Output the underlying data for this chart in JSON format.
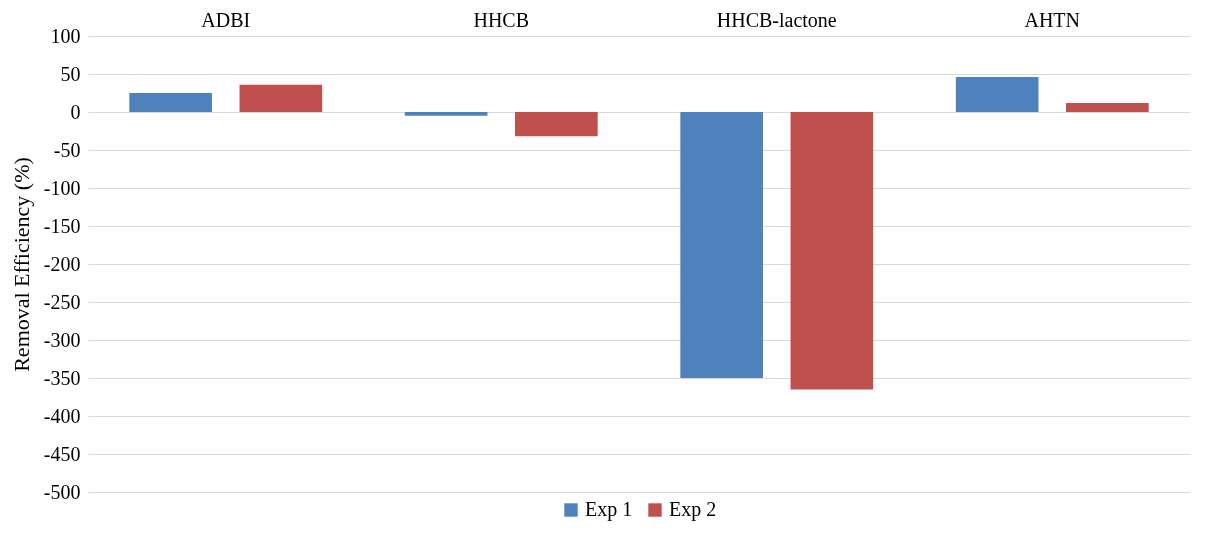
{
  "chart_data": {
    "type": "bar",
    "ylabel": "Removal Efficiency (%)",
    "categories": [
      "ADBI",
      "HHCB",
      "HHCB-lactone",
      "AHTN"
    ],
    "series": [
      {
        "name": "Exp 1",
        "color": "#4f81bd",
        "values": [
          25,
          -5,
          -350,
          46
        ]
      },
      {
        "name": "Exp 2",
        "color": "#c0504d",
        "values": [
          36,
          -32,
          -365,
          12
        ]
      }
    ],
    "ylim": [
      -500,
      100
    ],
    "yticks": [
      100,
      50,
      0,
      -50,
      -100,
      -150,
      -200,
      -250,
      -300,
      -350,
      -400,
      -450,
      -500
    ],
    "grid": "y",
    "legend": "bottom"
  }
}
